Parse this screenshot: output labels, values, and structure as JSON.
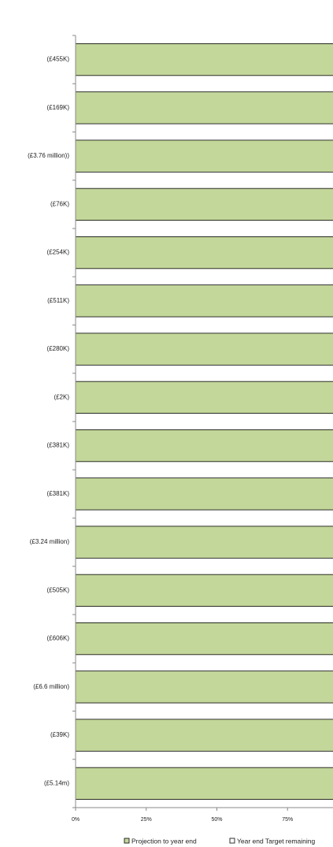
{
  "chart_data": {
    "type": "stacked_barh",
    "categories": [
      "(£455K)",
      "(£169K)",
      "(£3.76 million))",
      "(£76K)",
      "(£254K)",
      "(£511K)",
      "(£280K)",
      "(£2K)",
      "(£381K)",
      "(£381K)",
      "(£3.24 million)",
      "(£505K)",
      "(£606K)",
      "(£6.6 million)",
      "(£39K)",
      "(£5.14m)"
    ],
    "series": [
      {
        "name": "Projection to year end",
        "color": "#c4d79b",
        "values": [
          100,
          100,
          100,
          100,
          100,
          100,
          100,
          100,
          100,
          100,
          100,
          100,
          100,
          100,
          100,
          100
        ]
      },
      {
        "name": "Year end Target remaining",
        "color": "#ffffff",
        "values": [
          0,
          0,
          0,
          0,
          0,
          0,
          0,
          0,
          0,
          0,
          0,
          0,
          0,
          0,
          0,
          0
        ]
      }
    ],
    "xlim": [
      0,
      100
    ],
    "xticks": [
      {
        "value": 0,
        "label": "0%"
      },
      {
        "value": 25,
        "label": "25%"
      },
      {
        "value": 50,
        "label": "50%"
      },
      {
        "value": 75,
        "label": "75%"
      }
    ],
    "legend": "bottom"
  }
}
